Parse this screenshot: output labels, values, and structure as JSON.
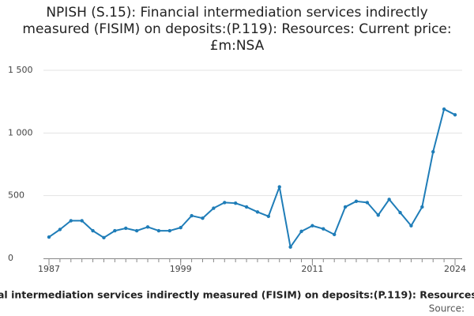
{
  "chart_data": {
    "type": "line",
    "title": "NPISH (S.15): Financial intermediation services indirectly measured (FISIM) on deposits:(P.119): Resources: Current price: £m:NSA",
    "x_label": "al intermediation services indirectly measured (FISIM) on deposits:(P.119): Resources",
    "source": "Source:",
    "x": [
      1987,
      1988,
      1989,
      1990,
      1991,
      1992,
      1993,
      1994,
      1995,
      1996,
      1997,
      1998,
      1999,
      2000,
      2001,
      2002,
      2003,
      2004,
      2005,
      2006,
      2007,
      2008,
      2009,
      2010,
      2011,
      2012,
      2013,
      2014,
      2015,
      2016,
      2017,
      2018,
      2019,
      2020,
      2021,
      2022,
      2023,
      2024
    ],
    "series": [
      {
        "name": "FISIM",
        "color": "#1f7db8",
        "values": [
          170,
          230,
          300,
          300,
          220,
          165,
          220,
          240,
          220,
          250,
          220,
          220,
          245,
          340,
          320,
          400,
          445,
          440,
          410,
          370,
          335,
          570,
          90,
          215,
          260,
          235,
          190,
          410,
          455,
          445,
          345,
          470,
          365,
          260,
          410,
          850,
          1190,
          1145
        ]
      }
    ],
    "xlim": [
      1987,
      2024
    ],
    "xticks": [
      1987,
      1999,
      2011,
      2024
    ],
    "ylim": [
      0,
      1500
    ],
    "yticks": [
      0,
      500,
      {
        "value": 1000,
        "label": "1 000"
      },
      {
        "value": 1500,
        "label": "1 500"
      }
    ],
    "grid": true
  }
}
